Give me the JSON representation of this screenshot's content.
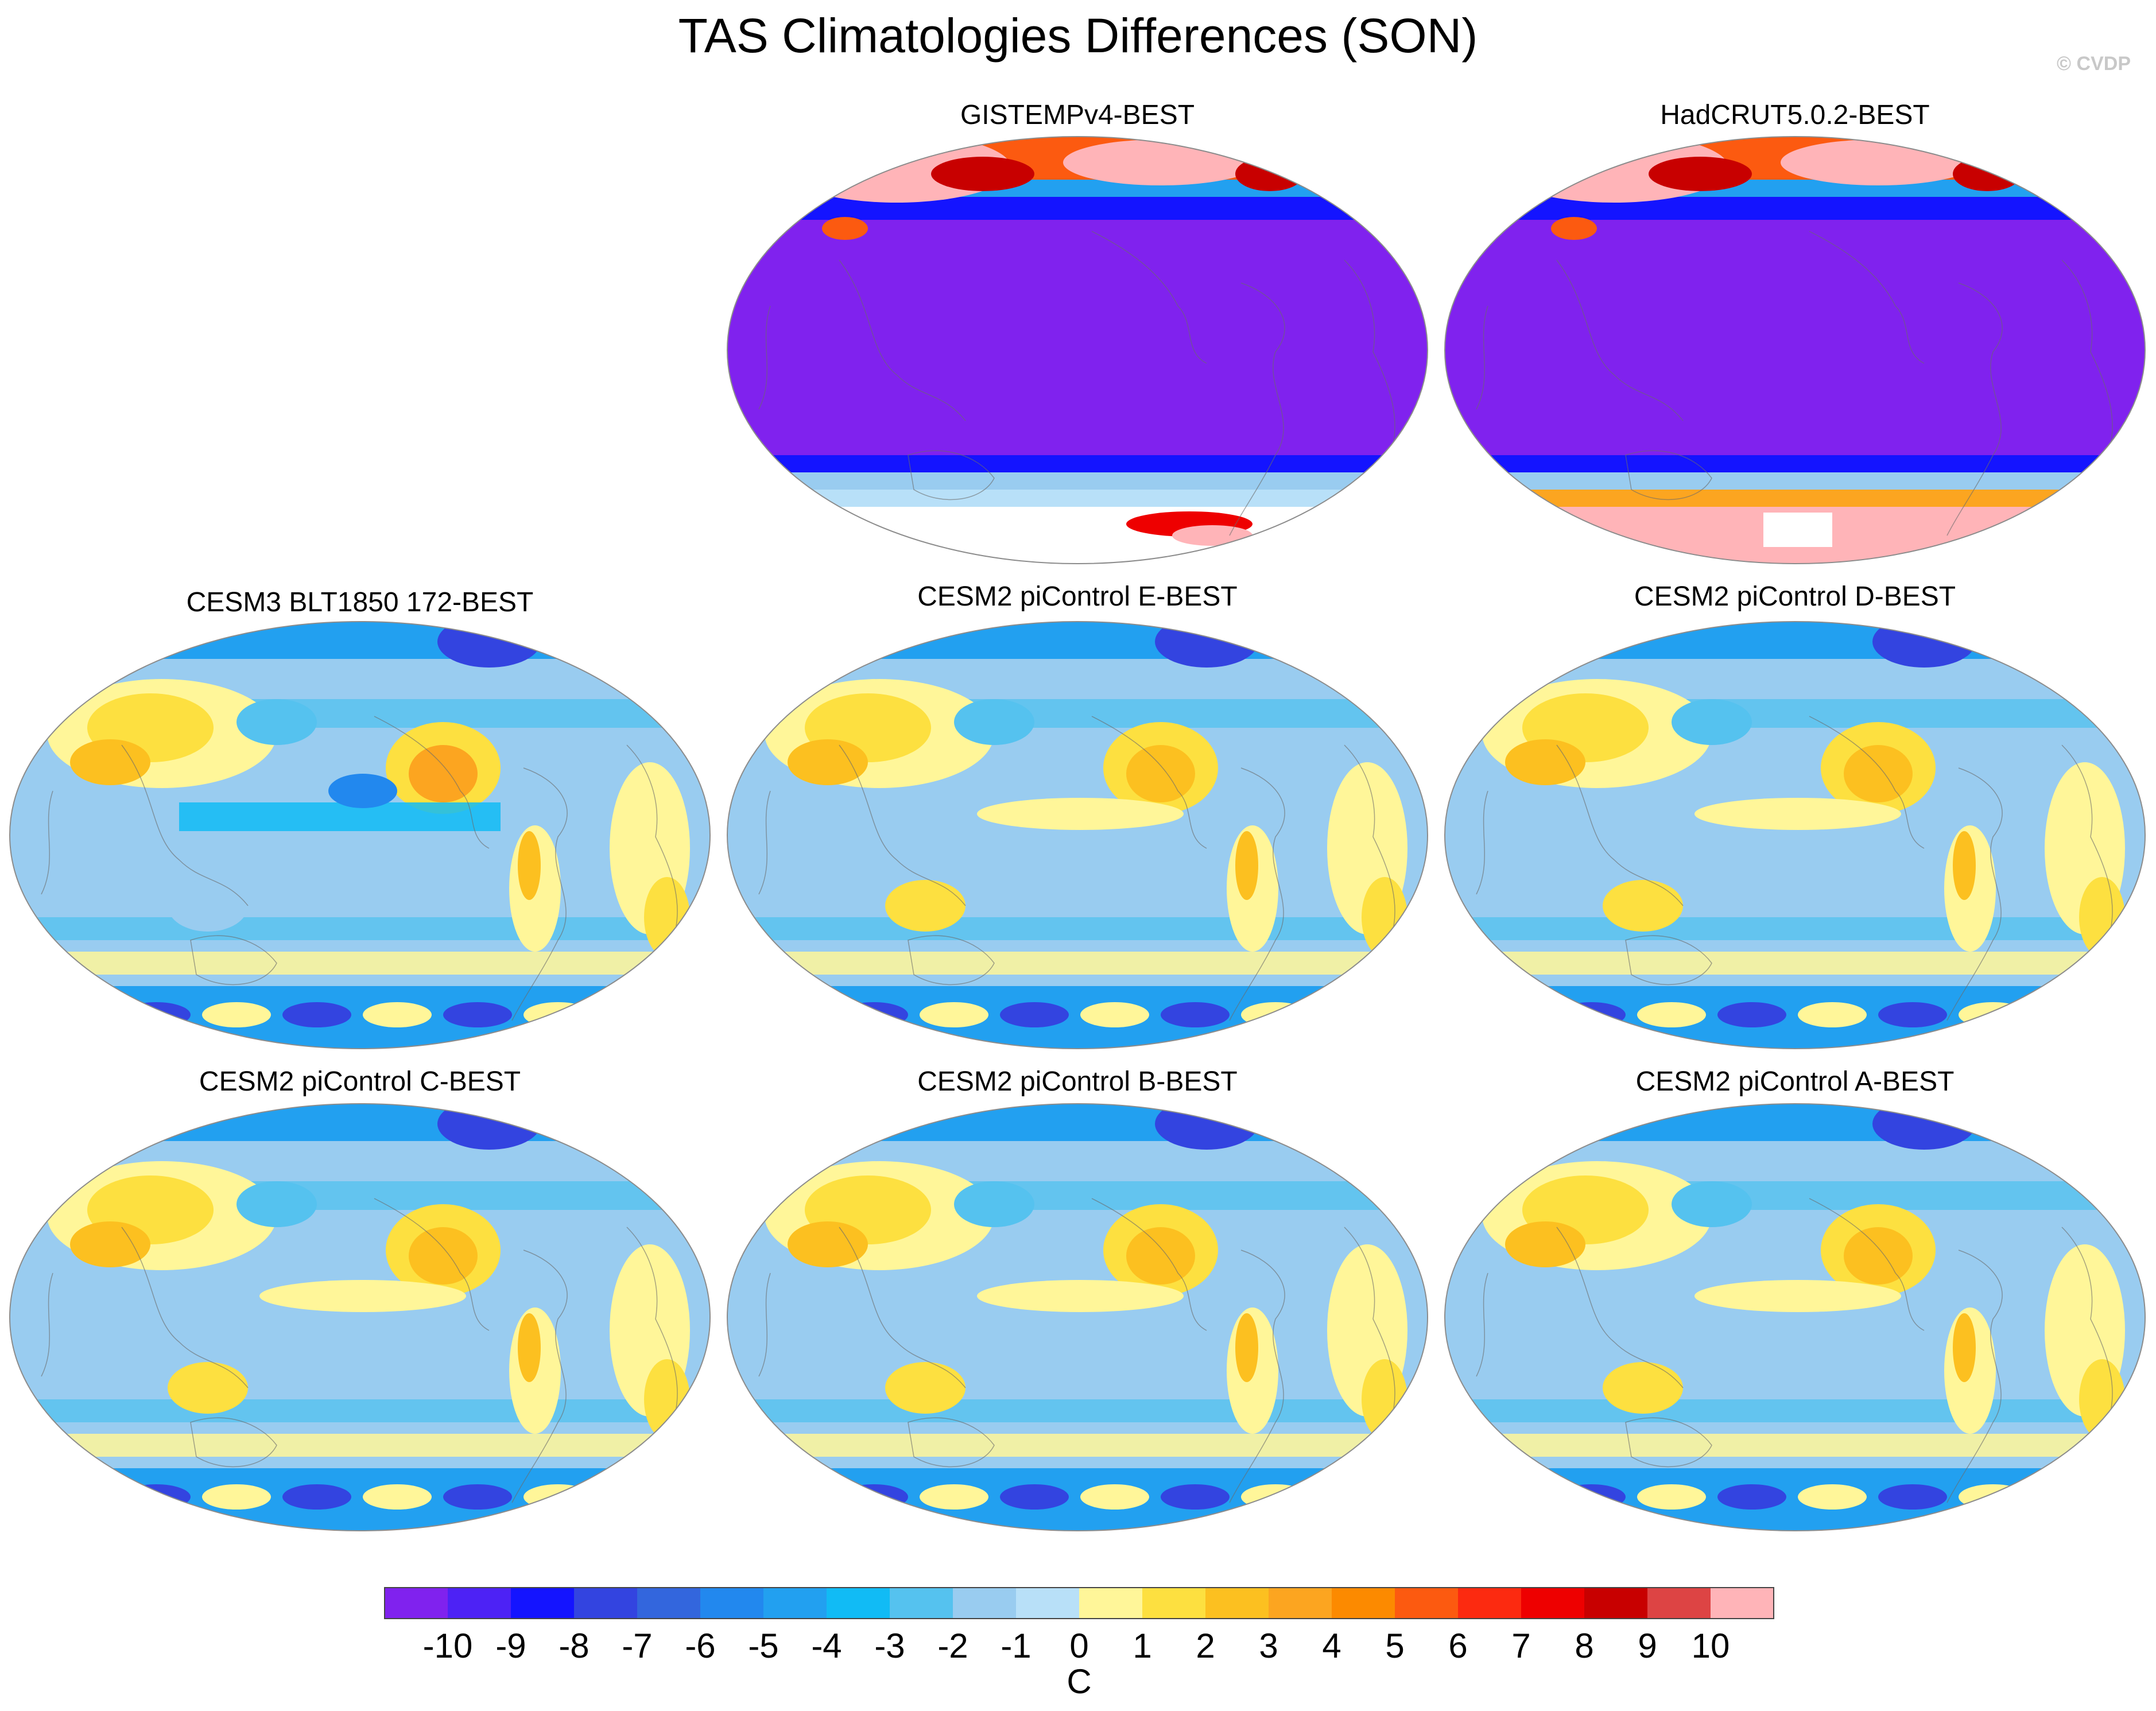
{
  "title": "TAS Climatologies Differences (SON)",
  "copyright": "© CVDP",
  "panels": [
    {
      "title": "GISTEMPv4-BEST",
      "style": "obs_gis"
    },
    {
      "title": "HadCRUT5.0.2-BEST",
      "style": "obs_had"
    },
    {
      "title": "CESM3 BLT1850 172-BEST",
      "style": "cesm3"
    },
    {
      "title": "CESM2 piControl E-BEST",
      "style": "cesm2"
    },
    {
      "title": "CESM2 piControl D-BEST",
      "style": "cesm2"
    },
    {
      "title": "CESM2 piControl C-BEST",
      "style": "cesm2"
    },
    {
      "title": "CESM2 piControl B-BEST",
      "style": "cesm2"
    },
    {
      "title": "CESM2 piControl A-BEST",
      "style": "cesm2"
    }
  ],
  "colorbar": {
    "label": "C",
    "ticks": [
      "-10",
      "-9",
      "-8",
      "-7",
      "-6",
      "-5",
      "-4",
      "-3",
      "-2",
      "-1",
      "0",
      "1",
      "2",
      "3",
      "4",
      "5",
      "6",
      "7",
      "8",
      "9",
      "10"
    ],
    "colors": [
      "#8022ee",
      "#4d22f5",
      "#1414ff",
      "#3344e0",
      "#3366dd",
      "#2288ee",
      "#22a0f0",
      "#11bbf5",
      "#55c2ef",
      "#99ccf0",
      "#b8e0f8",
      "#fff699",
      "#fde040",
      "#fcc020",
      "#fca520",
      "#fc8a00",
      "#fc5a10",
      "#fc2a10",
      "#ee0000",
      "#c80000",
      "#dd4444",
      "#ffb4b8"
    ]
  }
}
